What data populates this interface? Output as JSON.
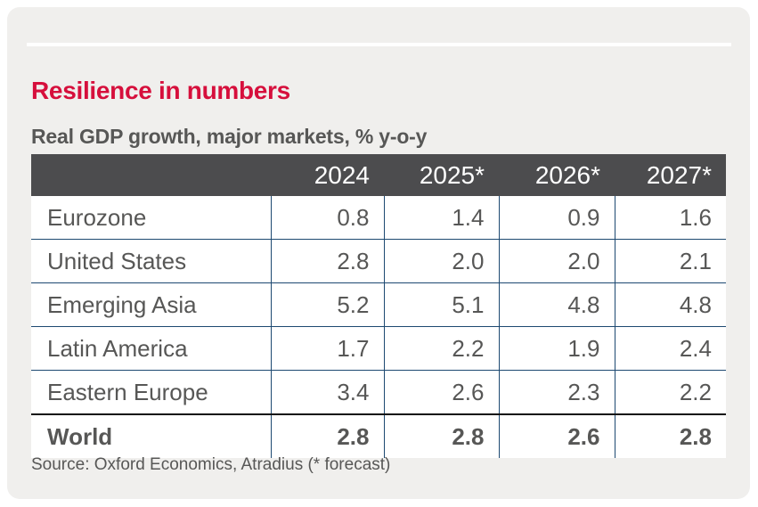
{
  "page": {
    "title": "Resilience in numbers",
    "subtitle": "Real GDP growth, major markets, % y-o-y",
    "source": "Source: Oxford Economics, Atradius (* forecast)"
  },
  "colors": {
    "accent_red": "#d60f3c",
    "card_background": "#f0efed",
    "header_background": "#4c4c4e",
    "header_text": "#ffffff",
    "body_text": "#575756",
    "grid_line_navy": "#1d4971",
    "world_row_rule": "#111111"
  },
  "table": {
    "columns": [
      "",
      "2024",
      "2025*",
      "2026*",
      "2027*"
    ],
    "rows": [
      {
        "label": "Eurozone",
        "values": [
          "0.8",
          "1.4",
          "0.9",
          "1.6"
        ],
        "bold": false
      },
      {
        "label": "United States",
        "values": [
          "2.8",
          "2.0",
          "2.0",
          "2.1"
        ],
        "bold": false
      },
      {
        "label": "Emerging Asia",
        "values": [
          "5.2",
          "5.1",
          "4.8",
          "4.8"
        ],
        "bold": false
      },
      {
        "label": "Latin America",
        "values": [
          "1.7",
          "2.2",
          "1.9",
          "2.4"
        ],
        "bold": false
      },
      {
        "label": "Eastern Europe",
        "values": [
          "3.4",
          "2.6",
          "2.3",
          "2.2"
        ],
        "bold": false
      },
      {
        "label": "World",
        "values": [
          "2.8",
          "2.8",
          "2.6",
          "2.8"
        ],
        "bold": true
      }
    ]
  },
  "chart_data": {
    "type": "table",
    "title": "Resilience in numbers",
    "subtitle": "Real GDP growth, major markets, % y-o-y",
    "categories": [
      "2024",
      "2025*",
      "2026*",
      "2027*"
    ],
    "series": [
      {
        "name": "Eurozone",
        "values": [
          0.8,
          1.4,
          0.9,
          1.6
        ]
      },
      {
        "name": "United States",
        "values": [
          2.8,
          2.0,
          2.0,
          2.1
        ]
      },
      {
        "name": "Emerging Asia",
        "values": [
          5.2,
          5.1,
          4.8,
          4.8
        ]
      },
      {
        "name": "Latin America",
        "values": [
          1.7,
          2.2,
          1.9,
          2.4
        ]
      },
      {
        "name": "Eastern Europe",
        "values": [
          3.4,
          2.6,
          2.3,
          2.2
        ]
      },
      {
        "name": "World",
        "values": [
          2.8,
          2.8,
          2.6,
          2.8
        ]
      }
    ],
    "source": "Source: Oxford Economics, Atradius (* forecast)",
    "notes": "* = forecast years; values are % year-on-year real GDP growth"
  }
}
